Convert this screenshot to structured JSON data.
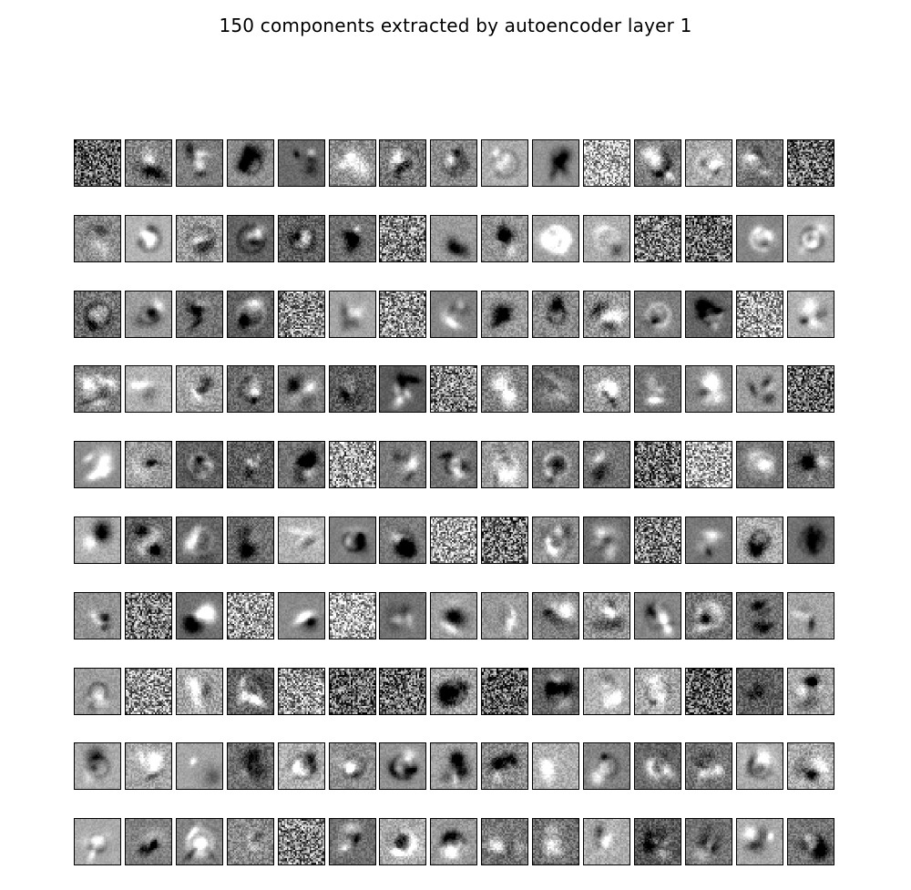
{
  "figure": {
    "title": "150 components extracted by autoencoder layer 1",
    "rows": 10,
    "cols": 15,
    "count": 150,
    "colors": {
      "background": "#ffffff",
      "frame": "#000000"
    }
  }
}
